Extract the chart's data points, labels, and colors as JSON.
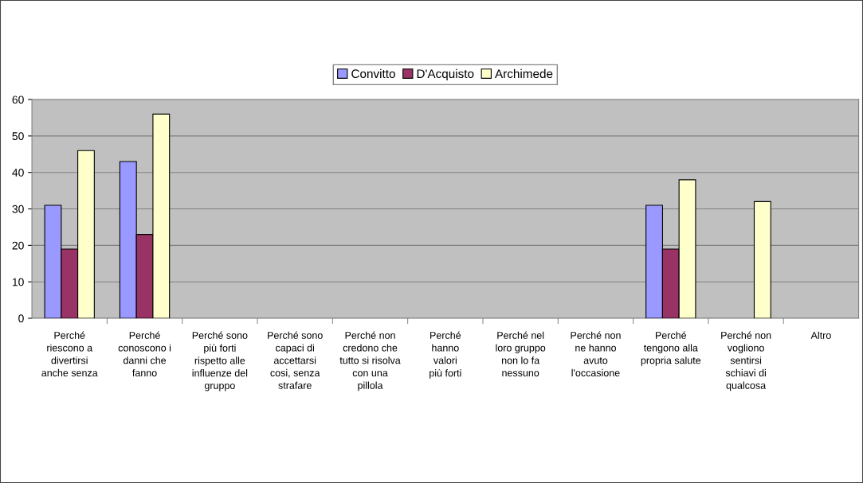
{
  "chart_data": {
    "type": "bar",
    "categories": [
      "Perché\nriescono a\ndivertirsi\nanche senza",
      "Perché\nconoscono i\ndanni che\nfanno",
      "Perché sono\npiù forti\nrispetto alle\ninfluenze del\ngruppo",
      "Perché sono\ncapaci di\naccettarsi\ncosi, senza\nstrafare",
      "Perché non\ncredono che\ntutto si risolva\ncon una\npillola",
      "Perché\nhanno\nvalori\npiù forti",
      "Perché nel\nloro gruppo\nnon lo fa\nnessuno",
      "Perché non\nne hanno\navuto\nl'occasione",
      "Perché\ntengono alla\npropria salute",
      "Perché non\nvogliono\nsentirsi\nschiavi di\nqualcosa",
      "Altro"
    ],
    "series": [
      {
        "name": "Convitto",
        "color": "#9999ff",
        "values": [
          31,
          43,
          null,
          null,
          null,
          null,
          null,
          null,
          31,
          null,
          null
        ]
      },
      {
        "name": "D'Acquisto",
        "color": "#993366",
        "values": [
          19,
          23,
          null,
          null,
          null,
          null,
          null,
          null,
          19,
          null,
          null
        ]
      },
      {
        "name": "Archimede",
        "color": "#ffffcc",
        "values": [
          46,
          56,
          null,
          null,
          null,
          null,
          null,
          null,
          38,
          32,
          null
        ]
      }
    ],
    "ylim": [
      0,
      60
    ],
    "yticks": [
      0,
      10,
      20,
      30,
      40,
      50,
      60
    ],
    "grid": "y",
    "legend": "top"
  }
}
